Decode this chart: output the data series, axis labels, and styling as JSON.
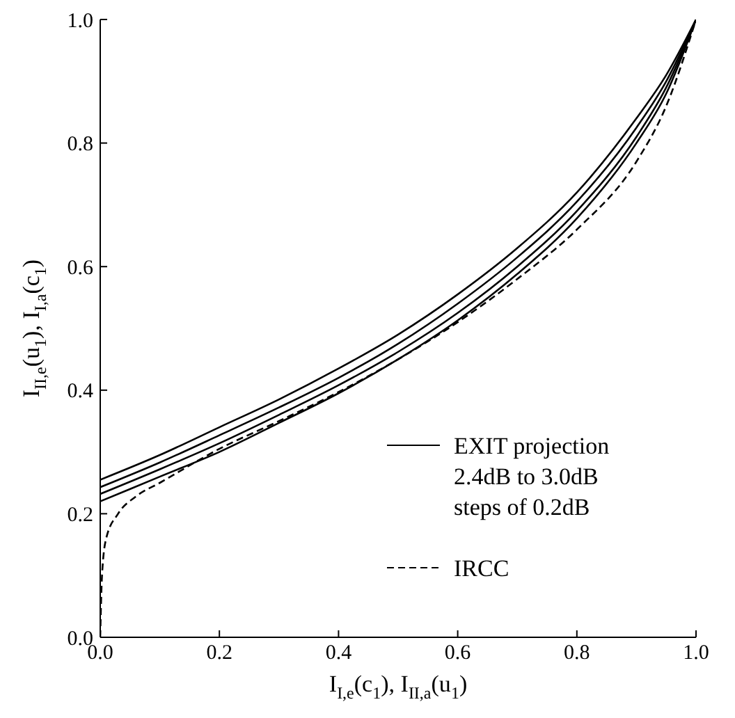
{
  "chart_data": {
    "type": "line",
    "xlabel": "I$_{I,e}$(c$_{1}$), I$_{II,a}$(u$_{1}$)",
    "ylabel": "I$_{II,e}$(u$_{1}$), I$_{I,a}$(c$_{1}$)",
    "x": [
      0,
      0.1,
      0.2,
      0.3,
      0.4,
      0.5,
      0.6,
      0.7,
      0.8,
      0.9,
      0.95,
      1
    ],
    "series": [
      {
        "name": "EXIT projection\n2.4dB to 3.0dB\nsteps of 0.2dB",
        "color": "#000000",
        "line_style": "solid",
        "values": [
          0.255,
          0.295,
          0.34,
          0.385,
          0.435,
          0.49,
          0.555,
          0.63,
          0.72,
          0.84,
          0.91,
          1.0
        ]
      },
      {
        "color": "#000000",
        "line_style": "solid",
        "values": [
          0.243,
          0.283,
          0.327,
          0.372,
          0.42,
          0.475,
          0.54,
          0.615,
          0.705,
          0.825,
          0.9,
          1.0
        ]
      },
      {
        "color": "#000000",
        "line_style": "solid",
        "values": [
          0.232,
          0.272,
          0.314,
          0.36,
          0.408,
          0.462,
          0.525,
          0.6,
          0.69,
          0.81,
          0.89,
          1.0
        ]
      },
      {
        "color": "#000000",
        "line_style": "solid",
        "values": [
          0.22,
          0.26,
          0.3,
          0.347,
          0.395,
          0.45,
          0.513,
          0.588,
          0.678,
          0.8,
          0.88,
          1.0
        ]
      },
      {
        "name": "IRCC",
        "color": "#000000",
        "line_style": "dashed",
        "x": [
          0,
          0.003,
          0.01,
          0.03,
          0.06,
          0.1,
          0.2,
          0.3,
          0.4,
          0.5,
          0.6,
          0.7,
          0.8,
          0.9,
          0.95,
          1
        ],
        "values": [
          0,
          0.1,
          0.16,
          0.2,
          0.228,
          0.25,
          0.305,
          0.35,
          0.397,
          0.45,
          0.51,
          0.58,
          0.66,
          0.77,
          0.86,
          1.0
        ]
      }
    ],
    "xlim": [
      0,
      1
    ],
    "ylim": [
      0,
      1
    ],
    "xticks": [
      {
        "value": 0,
        "label": "0.0"
      },
      0.2,
      0.4,
      0.6,
      0.8,
      {
        "value": 1,
        "label": "1.0"
      }
    ],
    "yticks": [
      {
        "value": 0,
        "label": "0.0"
      },
      0.2,
      0.4,
      0.6,
      0.8,
      {
        "value": 1,
        "label": "1.0"
      }
    ],
    "grid": false,
    "legend": "bottom right",
    "marker": "none"
  }
}
